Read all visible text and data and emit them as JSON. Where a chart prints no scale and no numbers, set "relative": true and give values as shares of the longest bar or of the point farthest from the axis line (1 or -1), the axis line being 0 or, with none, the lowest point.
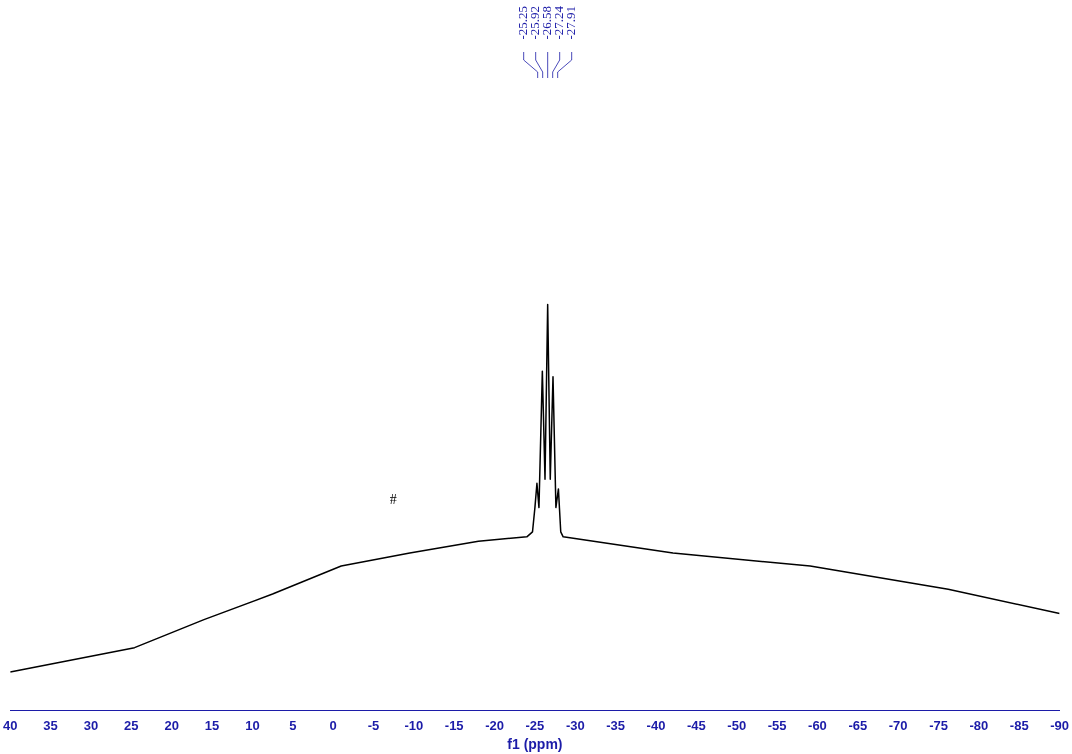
{
  "chart_data": {
    "type": "line",
    "relative": true,
    "xlabel": "f1 (ppm)",
    "xlim": [
      40,
      -90
    ],
    "xticks": [
      40,
      35,
      30,
      25,
      20,
      15,
      10,
      5,
      0,
      -5,
      -10,
      -15,
      -20,
      -25,
      -30,
      -35,
      -40,
      -45,
      -50,
      -55,
      -60,
      -65,
      -70,
      -75,
      -80,
      -85,
      -90
    ],
    "grid": false,
    "legend": false,
    "marker": "none",
    "line_style": "solid",
    "series": [
      {
        "color": "#000000",
        "x": [
          40,
          24.6,
          16,
          7.5,
          -1,
          -9.5,
          -18,
          -24,
          -24.7,
          -25,
          -25.25,
          -25.5,
          -25.92,
          -26.25,
          -26.58,
          -26.9,
          -27.24,
          -27.6,
          -27.91,
          -28.2,
          -28.5,
          -42.1,
          -59.1,
          -76.2,
          -90
        ],
        "values": [
          0.095,
          0.155,
          0.224,
          0.287,
          0.356,
          0.388,
          0.417,
          0.428,
          0.44,
          0.5,
          0.56,
          0.5,
          0.836,
          0.57,
          1.0,
          0.57,
          0.822,
          0.5,
          0.546,
          0.44,
          0.428,
          0.388,
          0.356,
          0.299,
          0.239
        ]
      }
    ],
    "annotations": [
      "-25.25",
      "-25.92",
      "-26.58",
      "-27.24",
      "-27.91",
      "#"
    ]
  }
}
